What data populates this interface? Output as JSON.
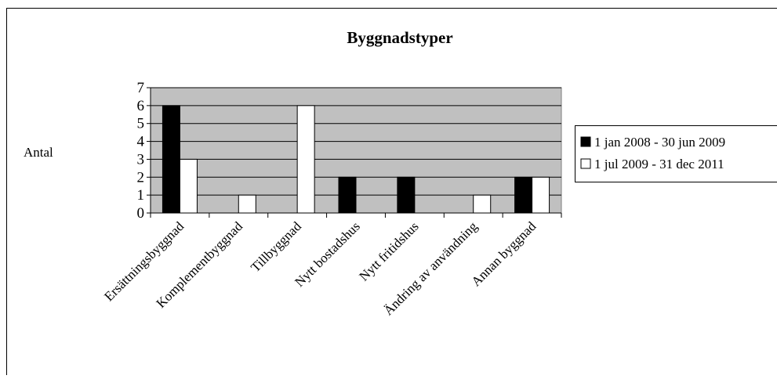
{
  "chart_data": {
    "type": "bar",
    "title": "Byggnadstyper",
    "y_label": "Antal",
    "categories": [
      "Ersättningsbyggnad",
      "Komplementbyggnad",
      "Tillbyggnad",
      "Nytt bostadshus",
      "Nytt fritidshus",
      "Ändring av användning",
      "Annan byggnad"
    ],
    "series": [
      {
        "name": "1 jan 2008 - 30 jun 2009",
        "color": "#000000",
        "values": [
          6,
          0,
          0,
          2,
          2,
          0,
          2
        ]
      },
      {
        "name": "1 jul 2009 - 31 dec 2011",
        "color": "#ffffff",
        "values": [
          3,
          1,
          6,
          0,
          0,
          1,
          2
        ]
      }
    ],
    "ylim": [
      0,
      7
    ],
    "yticks": [
      0,
      1,
      2,
      3,
      4,
      5,
      6,
      7
    ],
    "grid": true,
    "plot_background": "#c0c0c0",
    "legend": "right"
  }
}
